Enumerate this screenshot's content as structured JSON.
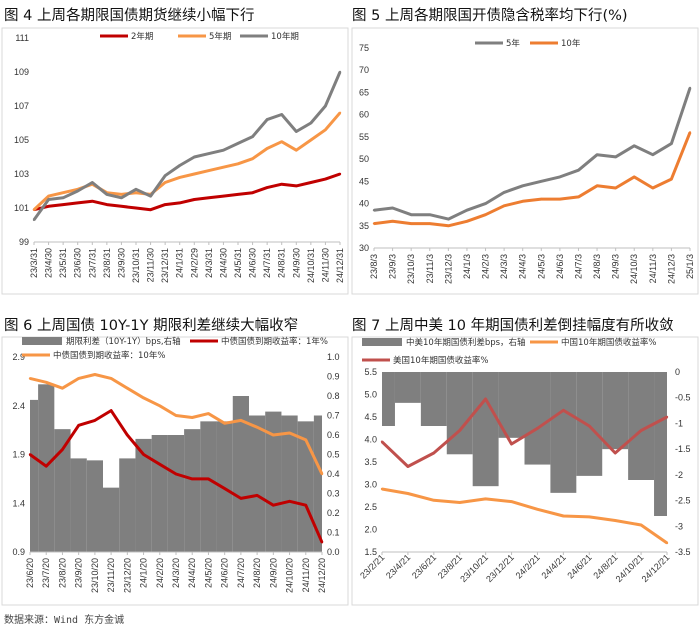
{
  "source": "数据来源：Wind 东方金诚",
  "chart_data": [
    {
      "id": "fig4",
      "type": "line",
      "title": "图 4  上周各期限国债期货继续小幅下行",
      "ylim": [
        99,
        111
      ],
      "yticks": [
        99,
        101,
        103,
        105,
        107,
        109,
        111
      ],
      "x": [
        "23/3/31",
        "23/4/30",
        "23/5/31",
        "23/6/30",
        "23/7/31",
        "23/8/31",
        "23/9/30",
        "23/10/31",
        "23/11/30",
        "23/12/31",
        "24/1/31",
        "24/2/29",
        "24/3/31",
        "24/4/30",
        "24/5/31",
        "24/6/30",
        "24/7/31",
        "24/8/31",
        "24/9/30",
        "24/10/31",
        "24/11/30",
        "24/12/31"
      ],
      "legend_position": "top",
      "series": [
        {
          "name": "2年期",
          "color": "#c00000",
          "values": [
            100.9,
            101.1,
            101.2,
            101.3,
            101.4,
            101.2,
            101.1,
            101.0,
            100.9,
            101.2,
            101.3,
            101.5,
            101.6,
            101.7,
            101.8,
            101.9,
            102.2,
            102.4,
            102.3,
            102.5,
            102.7,
            103.0
          ]
        },
        {
          "name": "5年期",
          "color": "#f79646",
          "values": [
            100.9,
            101.7,
            101.9,
            102.1,
            102.4,
            101.9,
            101.8,
            101.9,
            101.8,
            102.5,
            102.8,
            103.0,
            103.2,
            103.4,
            103.6,
            103.9,
            104.5,
            104.9,
            104.4,
            105.0,
            105.6,
            106.6
          ]
        },
        {
          "name": "10年期",
          "color": "#7f7f7f",
          "values": [
            100.3,
            101.5,
            101.6,
            102.0,
            102.5,
            101.8,
            101.6,
            102.1,
            101.7,
            102.9,
            103.5,
            104.0,
            104.2,
            104.4,
            104.8,
            105.2,
            106.2,
            106.5,
            105.5,
            106.0,
            107.0,
            109.0
          ]
        }
      ]
    },
    {
      "id": "fig5",
      "type": "line",
      "title": "图 5  上周各期限国开债隐含税率均下行(%)",
      "ylim": [
        30,
        75
      ],
      "yticks": [
        30,
        35,
        40,
        45,
        50,
        55,
        60,
        65,
        70,
        75
      ],
      "x": [
        "23/8/3",
        "23/9/3",
        "23/10/3",
        "23/11/3",
        "23/12/3",
        "24/1/3",
        "24/2/3",
        "24/3/3",
        "24/4/3",
        "24/5/3",
        "24/6/3",
        "24/7/3",
        "24/8/3",
        "24/9/3",
        "24/10/3",
        "24/11/3",
        "24/12/3",
        "25/1/3"
      ],
      "legend_position": "top",
      "series": [
        {
          "name": "5年",
          "color": "#7f7f7f",
          "values": [
            38.5,
            39.0,
            37.5,
            37.5,
            36.5,
            38.5,
            40.0,
            42.5,
            44.0,
            45.0,
            46.0,
            47.5,
            51.0,
            50.5,
            53.0,
            51.0,
            53.5,
            66.0
          ]
        },
        {
          "name": "10年",
          "color": "#ed7d31",
          "values": [
            35.5,
            36.0,
            35.5,
            35.5,
            35.0,
            36.0,
            37.5,
            39.5,
            40.5,
            41.0,
            41.0,
            41.5,
            44.0,
            43.5,
            46.0,
            43.5,
            45.5,
            56.0
          ]
        }
      ]
    },
    {
      "id": "fig6",
      "type": "area",
      "title": "图 6  上周国债 10Y-1Y 期限利差继续大幅收窄",
      "ylim": [
        0.9,
        2.9
      ],
      "yticks": [
        0.9,
        1.4,
        1.9,
        2.4,
        2.9
      ],
      "y2lim": [
        0.0,
        1.0
      ],
      "y2ticks": [
        "0.0",
        "0.1",
        "0.2",
        "0.3",
        "0.4",
        "0.5",
        "0.6",
        "0.7",
        "0.8",
        "0.9",
        "1.0"
      ],
      "x": [
        "23/6/20",
        "23/7/20",
        "23/8/20",
        "23/9/20",
        "23/10/20",
        "23/11/20",
        "23/12/20",
        "24/1/20",
        "24/2/20",
        "24/3/20",
        "24/4/20",
        "24/5/20",
        "24/6/20",
        "24/7/20",
        "24/8/20",
        "24/9/20",
        "24/10/20",
        "24/11/20",
        "24/12/20"
      ],
      "legend_position": "top",
      "series": [
        {
          "name": "期限利差（10Y-1Y）bps,右轴",
          "kind": "area",
          "axis": "right",
          "color": "#7f7f7f",
          "values": [
            0.78,
            0.86,
            0.63,
            0.48,
            0.47,
            0.33,
            0.48,
            0.58,
            0.6,
            0.6,
            0.63,
            0.67,
            0.67,
            0.8,
            0.7,
            0.72,
            0.7,
            0.67,
            0.7
          ]
        },
        {
          "name": "中债国债到期收益率：1年%",
          "kind": "line",
          "axis": "left",
          "color": "#c00000",
          "values": [
            1.9,
            1.78,
            1.95,
            2.2,
            2.25,
            2.35,
            2.1,
            1.9,
            1.8,
            1.7,
            1.65,
            1.65,
            1.55,
            1.45,
            1.48,
            1.38,
            1.42,
            1.38,
            1.0
          ]
        },
        {
          "name": "中债国债到期收益率：10年%",
          "kind": "line",
          "axis": "left",
          "color": "#f79646",
          "values": [
            2.68,
            2.64,
            2.58,
            2.68,
            2.72,
            2.68,
            2.58,
            2.48,
            2.4,
            2.3,
            2.28,
            2.32,
            2.22,
            2.25,
            2.18,
            2.1,
            2.12,
            2.05,
            1.7
          ]
        }
      ]
    },
    {
      "id": "fig7",
      "type": "area",
      "title": "图 7  上周中美 10 年期国债利差倒挂幅度有所收敛",
      "ylim": [
        1.5,
        5.5
      ],
      "yticks": [
        "1.5",
        "2.0",
        "2.5",
        "3.0",
        "3.5",
        "4.0",
        "4.5",
        "5.0",
        "5.5"
      ],
      "y2lim": [
        -3.5,
        0
      ],
      "y2ticks": [
        "-3.5",
        "-3",
        "-2.5",
        "-2",
        "-1.5",
        "-1",
        "-0.5",
        "0"
      ],
      "x": [
        "23/2/21",
        "23/4/21",
        "23/6/21",
        "23/8/21",
        "23/10/21",
        "23/12/21",
        "24/2/21",
        "24/4/21",
        "24/6/21",
        "24/8/21",
        "24/10/21",
        "24/12/21"
      ],
      "legend_position": "top",
      "series": [
        {
          "name": "中美10年期国债利差bps，右轴",
          "kind": "area",
          "axis": "right",
          "color": "#7f7f7f",
          "values": [
            -1.05,
            -0.6,
            -1.05,
            -1.6,
            -2.22,
            -1.28,
            -1.8,
            -2.35,
            -2.02,
            -1.5,
            -2.1,
            -2.8
          ]
        },
        {
          "name": "中国10年期国债收益率%",
          "kind": "line",
          "axis": "left",
          "color": "#f79646",
          "values": [
            2.9,
            2.8,
            2.65,
            2.6,
            2.68,
            2.62,
            2.45,
            2.3,
            2.28,
            2.2,
            2.1,
            1.7
          ]
        },
        {
          "name": "美国10年期国债收益率%",
          "kind": "line",
          "axis": "left",
          "color": "#c0504d",
          "values": [
            3.95,
            3.4,
            3.7,
            4.2,
            4.9,
            3.9,
            4.25,
            4.65,
            4.3,
            3.7,
            4.2,
            4.5
          ]
        }
      ]
    }
  ]
}
